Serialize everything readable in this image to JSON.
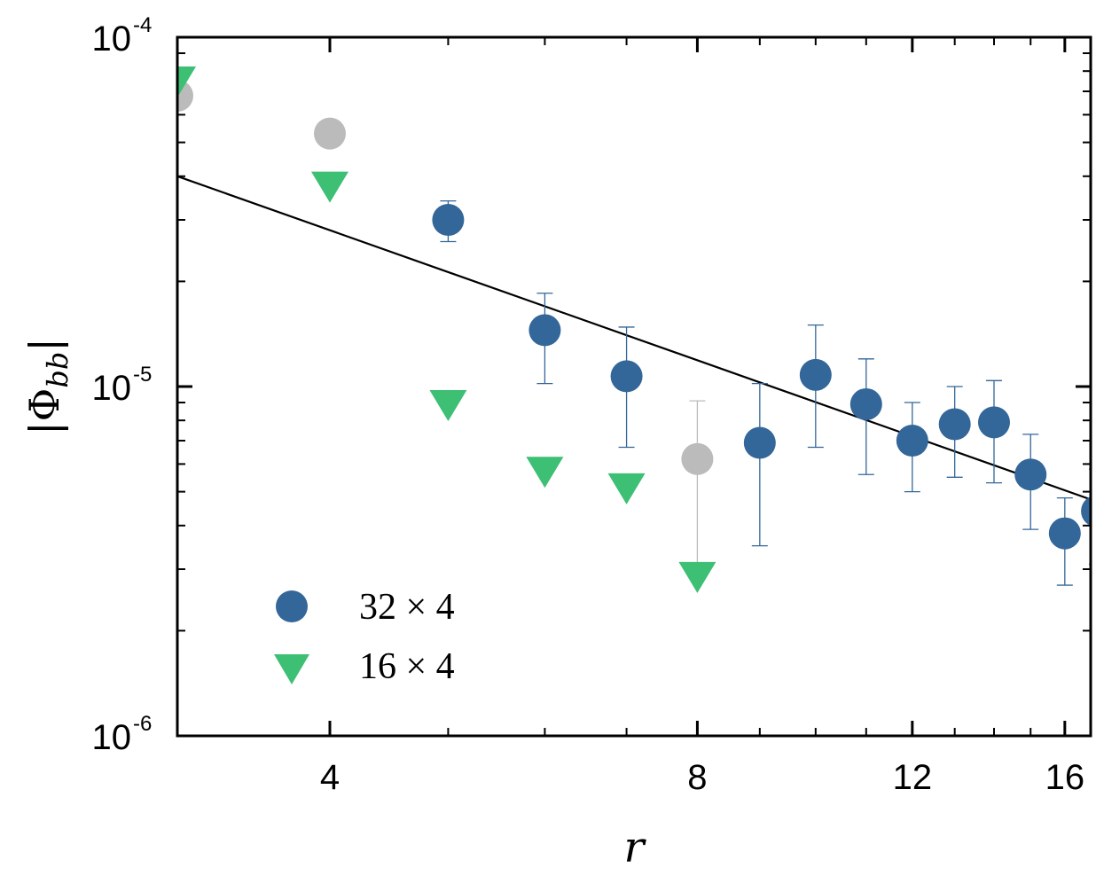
{
  "chart_data": {
    "type": "scatter",
    "x_scale": "log",
    "y_scale": "log",
    "xlabel": "r",
    "ylabel": "|Φ_bb|",
    "ylabel_main": "|Φ",
    "ylabel_sub": "bb",
    "ylabel_end": "|",
    "xlim": [
      3.0,
      16.8
    ],
    "ylim": [
      1e-06,
      0.0001
    ],
    "x_ticks": [
      {
        "value": 4,
        "label": "4"
      },
      {
        "value": 8,
        "label": "8"
      },
      {
        "value": 12,
        "label": "12"
      },
      {
        "value": 16,
        "label": "16"
      }
    ],
    "y_ticks": [
      {
        "value": 1e-06,
        "base": "10",
        "exp": "-6"
      },
      {
        "value": 1e-05,
        "base": "10",
        "exp": "-5"
      },
      {
        "value": 0.0001,
        "base": "10",
        "exp": "-4"
      }
    ],
    "grid": false,
    "legend_position": "bottom-left",
    "series": [
      {
        "name": "32 × 4",
        "marker": "circle",
        "color": "#336699",
        "points": [
          {
            "x": 5,
            "y": 3e-05,
            "err_lo": 2.6e-05,
            "err_hi": 3.4e-05
          },
          {
            "x": 6,
            "y": 1.45e-05,
            "err_lo": 1.02e-05,
            "err_hi": 1.85e-05
          },
          {
            "x": 7,
            "y": 1.07e-05,
            "err_lo": 6.7e-06,
            "err_hi": 1.48e-05
          },
          {
            "x": 9,
            "y": 6.9e-06,
            "err_lo": 3.5e-06,
            "err_hi": 1.02e-05
          },
          {
            "x": 10,
            "y": 1.08e-05,
            "err_lo": 6.7e-06,
            "err_hi": 1.5e-05
          },
          {
            "x": 11,
            "y": 8.9e-06,
            "err_lo": 5.6e-06,
            "err_hi": 1.2e-05
          },
          {
            "x": 12,
            "y": 7e-06,
            "err_lo": 5e-06,
            "err_hi": 9e-06
          },
          {
            "x": 13,
            "y": 7.8e-06,
            "err_lo": 5.5e-06,
            "err_hi": 1e-05
          },
          {
            "x": 14,
            "y": 7.9e-06,
            "err_lo": 5.3e-06,
            "err_hi": 1.04e-05
          },
          {
            "x": 15,
            "y": 5.6e-06,
            "err_lo": 3.9e-06,
            "err_hi": 7.3e-06
          },
          {
            "x": 16,
            "y": 3.8e-06,
            "err_lo": 2.7e-06,
            "err_hi": 4.8e-06
          },
          {
            "x": 17,
            "y": 4.4e-06,
            "err_lo": 3.1e-06,
            "err_hi": 5.8e-06
          }
        ]
      },
      {
        "name": "16 × 4",
        "marker": "triangle-down",
        "color": "#3dbf74",
        "points": [
          {
            "x": 3,
            "y": 7.6e-05
          },
          {
            "x": 4,
            "y": 3.8e-05
          },
          {
            "x": 5,
            "y": 9e-06
          },
          {
            "x": 6,
            "y": 5.8e-06
          },
          {
            "x": 7,
            "y": 5.2e-06
          },
          {
            "x": 8,
            "y": 2.9e-06
          }
        ]
      },
      {
        "marker": "circle",
        "color": "#bbbbbb",
        "points": [
          {
            "x": 3,
            "y": 6.8e-05
          },
          {
            "x": 4,
            "y": 5.3e-05
          },
          {
            "x": 8,
            "y": 6.2e-06,
            "err_lo": 3e-06,
            "err_hi": 9.1e-06
          }
        ]
      }
    ],
    "fit_line": {
      "color": "#000000",
      "from": {
        "x": 3.0,
        "y": 4e-05
      },
      "to": {
        "x": 16.8,
        "y": 4.75e-06
      }
    }
  }
}
